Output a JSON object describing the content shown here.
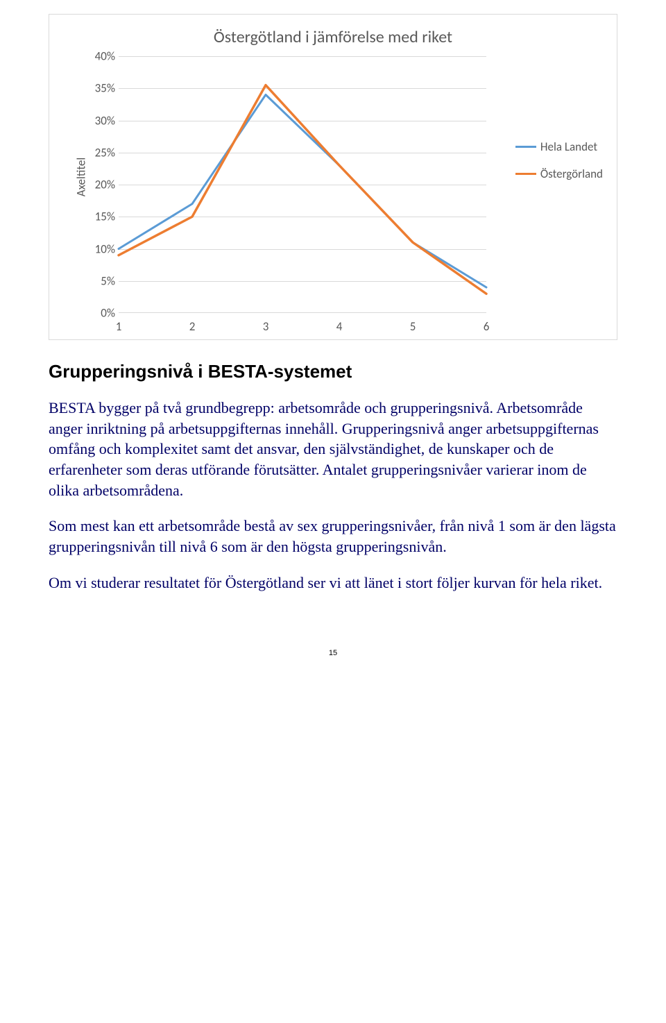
{
  "chart": {
    "title": "Östergötland i jämförelse med riket",
    "y_axis_label": "Axeltitel",
    "y_ticks": [
      "0%",
      "5%",
      "10%",
      "15%",
      "20%",
      "25%",
      "30%",
      "35%",
      "40%"
    ],
    "x_ticks": [
      "1",
      "2",
      "3",
      "4",
      "5",
      "6"
    ],
    "ylim": [
      0,
      40
    ],
    "series": [
      {
        "name": "Hela Landet",
        "color": "#5b9bd5",
        "line_width": 3,
        "y": [
          10,
          17,
          34,
          23,
          11,
          4
        ]
      },
      {
        "name": "Östergörland",
        "color": "#ed7d31",
        "line_width": 3.5,
        "y": [
          9,
          15,
          35.5,
          23,
          11,
          3
        ]
      }
    ],
    "grid_color": "#d9d9d9",
    "background": "#ffffff",
    "text_color": "#595959"
  },
  "heading": "Grupperingsnivå i BESTA-systemet",
  "paragraphs": [
    "BESTA bygger på två grundbegrepp: arbetsområde och grupperingsnivå. Arbetsområde anger inriktning på arbetsuppgifternas innehåll. Grupperingsnivå anger arbetsuppgifternas omfång och komplexitet samt det ansvar, den självständighet, de kunskaper och de erfarenheter som deras utförande förutsätter. Antalet grupperingsnivåer varierar inom de olika arbetsområdena.",
    "Som mest kan ett arbetsområde bestå av sex grupperingsnivåer, från nivå 1 som är den lägsta grupperingsnivån till nivå 6 som är den högsta grupperingsnivån.",
    "Om vi studerar resultatet för Östergötland ser vi att länet i stort följer kurvan för hela riket."
  ],
  "page_number": "15"
}
